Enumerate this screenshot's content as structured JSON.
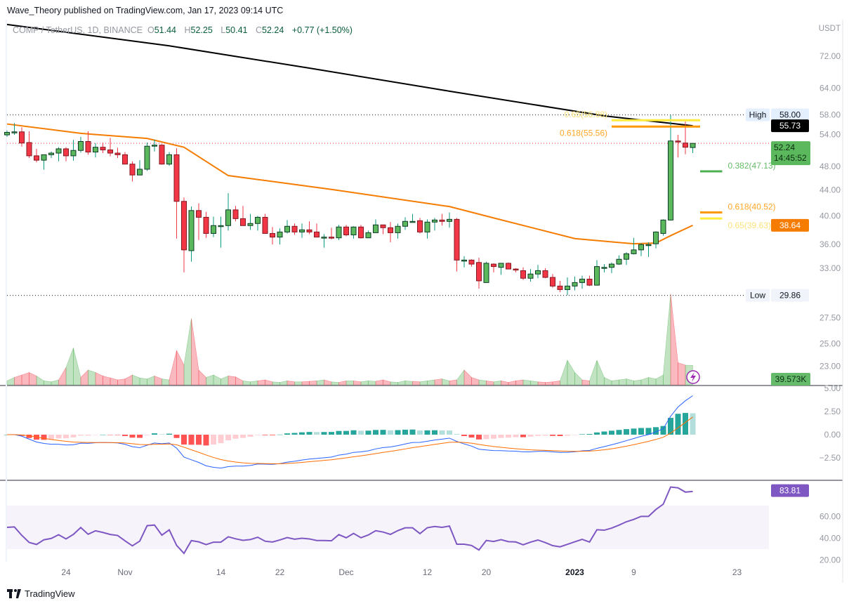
{
  "header": {
    "publisher_line": "Wave_Theory published on TradingView.com, Jan 17, 2023 09:14 UTC"
  },
  "legend": {
    "symbol": "COMP / TetherUS, 1D, BINANCE",
    "o_key": "O",
    "o": "51.44",
    "h_key": "H",
    "h": "52.25",
    "l_key": "L",
    "l": "50.41",
    "c_key": "C",
    "c": "52.24",
    "change": "+0.77 (+1.50%)"
  },
  "footer": {
    "brand": "TradingView"
  },
  "colors": {
    "up": "#5cb85c",
    "down": "#f23645",
    "up_wick": "#089981",
    "down_wick": "#f23645",
    "ma200": "#000000",
    "ema": "#f57c00",
    "rsi": "#7e57c2",
    "macd": "#2962ff",
    "signal": "#ff6d00"
  },
  "chart_data": {
    "type": "candlestick",
    "currency": "USDT",
    "price_scale": "log",
    "price_ticks": [
      "72.00",
      "64.00",
      "58.00",
      "54.00",
      "48.00",
      "44.00",
      "40.00",
      "36.00",
      "33.00",
      "27.50",
      "25.00",
      "23.00"
    ],
    "macd_ticks": [
      "5.00",
      "2.50",
      "0.00",
      "−2.50"
    ],
    "rsi_ticks": [
      "60.00",
      "40.00",
      "20.00"
    ],
    "time_labels": [
      {
        "label": "24",
        "date": "2022-10-24"
      },
      {
        "label": "Nov",
        "date": "2022-11-01"
      },
      {
        "label": "14",
        "date": "2022-11-14"
      },
      {
        "label": "22",
        "date": "2022-11-22"
      },
      {
        "label": "Dec",
        "date": "2022-12-01"
      },
      {
        "label": "12",
        "date": "2022-12-12"
      },
      {
        "label": "20",
        "date": "2022-12-20"
      },
      {
        "label": "2023",
        "date": "2023-01-01",
        "bold": true
      },
      {
        "label": "9",
        "date": "2023-01-09"
      },
      {
        "label": "23",
        "date": "2023-01-23"
      }
    ],
    "candle_fields": [
      "date",
      "open",
      "high",
      "low",
      "close",
      "volume_k"
    ],
    "candles": [
      [
        "2022-10-16",
        53.9,
        54.8,
        53.5,
        54.4,
        8
      ],
      [
        "2022-10-17",
        54.5,
        56.3,
        53.9,
        54.5,
        15
      ],
      [
        "2022-10-18",
        54.5,
        55.4,
        51.6,
        52.3,
        20
      ],
      [
        "2022-10-19",
        52.4,
        54.6,
        49.5,
        49.9,
        25
      ],
      [
        "2022-10-20",
        49.9,
        51.2,
        48.7,
        49.1,
        18
      ],
      [
        "2022-10-21",
        49.1,
        50.1,
        47.4,
        50.1,
        8
      ],
      [
        "2022-10-22",
        50.1,
        50.7,
        49.5,
        50.4,
        6
      ],
      [
        "2022-10-23",
        50.4,
        51.5,
        48.9,
        51.2,
        10
      ],
      [
        "2022-10-24",
        51.2,
        51.5,
        48.9,
        49.9,
        35
      ],
      [
        "2022-10-25",
        49.9,
        52.9,
        49.0,
        50.9,
        75
      ],
      [
        "2022-10-26",
        50.9,
        53.5,
        50.5,
        52.6,
        15
      ],
      [
        "2022-10-27",
        52.6,
        54.6,
        50.1,
        50.6,
        30
      ],
      [
        "2022-10-28",
        50.6,
        52.3,
        49.6,
        51.5,
        25
      ],
      [
        "2022-10-29",
        51.5,
        52.4,
        50.4,
        51.0,
        18
      ],
      [
        "2022-10-30",
        51.0,
        53.3,
        49.8,
        50.4,
        14
      ],
      [
        "2022-10-31",
        50.4,
        51.4,
        49.5,
        50.1,
        10
      ],
      [
        "2022-11-01",
        50.1,
        50.6,
        48.4,
        48.4,
        12
      ],
      [
        "2022-11-02",
        48.4,
        48.9,
        45.4,
        46.5,
        20
      ],
      [
        "2022-11-03",
        46.5,
        49.1,
        46.5,
        47.5,
        14
      ],
      [
        "2022-11-04",
        47.5,
        52.4,
        47.2,
        51.7,
        12
      ],
      [
        "2022-11-05",
        51.7,
        53.0,
        50.7,
        51.9,
        18
      ],
      [
        "2022-11-06",
        51.9,
        52.1,
        48.3,
        48.4,
        12
      ],
      [
        "2022-11-07",
        48.4,
        50.6,
        48.1,
        50.1,
        10
      ],
      [
        "2022-11-08",
        50.1,
        51.3,
        36.8,
        42.2,
        70
      ],
      [
        "2022-11-09",
        42.2,
        42.8,
        32.5,
        35.3,
        40
      ],
      [
        "2022-11-10",
        35.2,
        41.4,
        33.8,
        40.8,
        135
      ],
      [
        "2022-11-11",
        40.8,
        41.9,
        36.6,
        39.8,
        30
      ],
      [
        "2022-11-12",
        39.8,
        40.6,
        36.9,
        37.5,
        15
      ],
      [
        "2022-11-13",
        37.5,
        39.9,
        37.0,
        38.6,
        20
      ],
      [
        "2022-11-14",
        38.6,
        39.9,
        35.6,
        38.6,
        12
      ],
      [
        "2022-11-15",
        38.6,
        43.5,
        37.9,
        40.9,
        18
      ],
      [
        "2022-11-16",
        40.9,
        41.5,
        39.2,
        39.6,
        16
      ],
      [
        "2022-11-17",
        39.6,
        41.5,
        38.6,
        38.6,
        8
      ],
      [
        "2022-11-18",
        38.6,
        40.3,
        38.0,
        38.9,
        6
      ],
      [
        "2022-11-19",
        38.9,
        40.0,
        37.9,
        39.8,
        8
      ],
      [
        "2022-11-20",
        39.8,
        40.3,
        37.5,
        37.5,
        10
      ],
      [
        "2022-11-21",
        37.5,
        38.4,
        36.0,
        37.0,
        6
      ],
      [
        "2022-11-22",
        37.0,
        38.2,
        36.0,
        37.7,
        5
      ],
      [
        "2022-11-23",
        37.7,
        39.4,
        37.5,
        38.5,
        8
      ],
      [
        "2022-11-24",
        38.5,
        38.9,
        37.3,
        37.7,
        6
      ],
      [
        "2022-11-25",
        37.7,
        38.9,
        36.9,
        38.0,
        6
      ],
      [
        "2022-11-26",
        38.0,
        39.2,
        37.4,
        37.7,
        7
      ],
      [
        "2022-11-27",
        37.7,
        38.9,
        37.0,
        37.0,
        8
      ],
      [
        "2022-11-28",
        37.0,
        37.4,
        35.6,
        37.0,
        10
      ],
      [
        "2022-11-29",
        37.0,
        38.3,
        36.7,
        36.9,
        6
      ],
      [
        "2022-11-30",
        36.9,
        38.7,
        36.6,
        38.4,
        5
      ],
      [
        "2022-12-01",
        38.4,
        38.7,
        37.1,
        37.3,
        8
      ],
      [
        "2022-12-02",
        37.3,
        38.5,
        36.8,
        38.4,
        8
      ],
      [
        "2022-12-03",
        38.4,
        38.7,
        36.8,
        36.9,
        6
      ],
      [
        "2022-12-04",
        36.9,
        37.9,
        36.9,
        37.6,
        8
      ],
      [
        "2022-12-05",
        37.6,
        39.5,
        37.6,
        38.7,
        7
      ],
      [
        "2022-12-06",
        38.7,
        38.7,
        37.4,
        38.3,
        10
      ],
      [
        "2022-12-07",
        38.3,
        39.1,
        36.3,
        37.6,
        6
      ],
      [
        "2022-12-08",
        37.6,
        38.9,
        36.8,
        38.5,
        5
      ],
      [
        "2022-12-09",
        38.5,
        39.8,
        38.0,
        39.2,
        8
      ],
      [
        "2022-12-10",
        39.2,
        40.3,
        39.2,
        39.2,
        7
      ],
      [
        "2022-12-11",
        39.3,
        39.7,
        37.5,
        37.7,
        6
      ],
      [
        "2022-12-12",
        37.7,
        39.5,
        36.8,
        39.1,
        8
      ],
      [
        "2022-12-13",
        39.1,
        39.7,
        37.9,
        39.4,
        10
      ],
      [
        "2022-12-14",
        39.4,
        40.3,
        38.6,
        39.2,
        12
      ],
      [
        "2022-12-15",
        39.2,
        40.5,
        38.3,
        39.5,
        8
      ],
      [
        "2022-12-16",
        39.5,
        39.7,
        32.6,
        34.0,
        10
      ],
      [
        "2022-12-17",
        34.0,
        34.5,
        33.1,
        34.0,
        30
      ],
      [
        "2022-12-18",
        34.0,
        34.1,
        33.2,
        33.5,
        15
      ],
      [
        "2022-12-19",
        33.7,
        34.3,
        30.6,
        31.5,
        10
      ],
      [
        "2022-12-20",
        31.3,
        33.8,
        31.3,
        33.6,
        8
      ],
      [
        "2022-12-21",
        33.5,
        33.6,
        32.5,
        33.2,
        6
      ],
      [
        "2022-12-22",
        33.1,
        33.6,
        32.2,
        33.6,
        8
      ],
      [
        "2022-12-23",
        33.6,
        33.7,
        32.9,
        32.9,
        5
      ],
      [
        "2022-12-24",
        32.9,
        33.0,
        32.5,
        32.8,
        8
      ],
      [
        "2022-12-25",
        32.7,
        33.1,
        31.6,
        31.8,
        10
      ],
      [
        "2022-12-26",
        31.8,
        32.9,
        31.4,
        32.3,
        8
      ],
      [
        "2022-12-27",
        32.3,
        33.4,
        31.8,
        32.7,
        6
      ],
      [
        "2022-12-28",
        32.7,
        33.0,
        31.8,
        31.9,
        5
      ],
      [
        "2022-12-29",
        31.9,
        32.3,
        30.7,
        30.9,
        6
      ],
      [
        "2022-12-30",
        30.9,
        31.5,
        30.2,
        30.5,
        8
      ],
      [
        "2022-12-31",
        30.5,
        31.9,
        29.86,
        30.9,
        50
      ],
      [
        "2023-01-01",
        30.9,
        32.0,
        30.4,
        31.3,
        25
      ],
      [
        "2023-01-02",
        31.3,
        32.1,
        30.6,
        31.7,
        10
      ],
      [
        "2023-01-03",
        31.7,
        32.1,
        30.9,
        31.0,
        8
      ],
      [
        "2023-01-04",
        31.0,
        34.0,
        31.0,
        33.2,
        50
      ],
      [
        "2023-01-05",
        33.1,
        33.5,
        32.5,
        33.1,
        15
      ],
      [
        "2023-01-06",
        33.1,
        33.7,
        32.4,
        33.5,
        8
      ],
      [
        "2023-01-07",
        33.5,
        34.6,
        33.4,
        34.1,
        10
      ],
      [
        "2023-01-08",
        34.1,
        35.0,
        33.4,
        34.8,
        12
      ],
      [
        "2023-01-09",
        34.8,
        36.9,
        34.7,
        35.3,
        8
      ],
      [
        "2023-01-10",
        35.3,
        36.2,
        34.5,
        36.0,
        10
      ],
      [
        "2023-01-11",
        36.0,
        36.3,
        34.4,
        36.0,
        15
      ],
      [
        "2023-01-12",
        36.1,
        37.8,
        35.5,
        37.7,
        12
      ],
      [
        "2023-01-13",
        37.5,
        39.5,
        37.2,
        39.4,
        20
      ],
      [
        "2023-01-14",
        39.4,
        58.0,
        39.3,
        52.7,
        185
      ],
      [
        "2023-01-15",
        52.7,
        53.9,
        49.6,
        52.5,
        45
      ],
      [
        "2023-01-16",
        52.3,
        56.6,
        50.2,
        51.5,
        40
      ],
      [
        "2023-01-17",
        51.44,
        52.25,
        50.41,
        52.24,
        39.573
      ]
    ],
    "ma_200": [
      [
        "2022-10-16",
        80.9
      ],
      [
        "2022-11-07",
        74.8
      ],
      [
        "2022-11-26",
        68.9
      ],
      [
        "2022-12-15",
        63.3
      ],
      [
        "2023-01-05",
        57.8
      ],
      [
        "2023-01-17",
        55.73
      ]
    ],
    "ema": [
      [
        "2022-10-16",
        56.1
      ],
      [
        "2022-10-26",
        54.2
      ],
      [
        "2022-11-04",
        53.2
      ],
      [
        "2022-11-09",
        51.5
      ],
      [
        "2022-11-15",
        46.4
      ],
      [
        "2022-11-29",
        44.1
      ],
      [
        "2022-12-15",
        41.4
      ],
      [
        "2022-12-21",
        39.7
      ],
      [
        "2023-01-01",
        36.8
      ],
      [
        "2023-01-09",
        36.1
      ],
      [
        "2023-01-12",
        36.2
      ],
      [
        "2023-01-14",
        37.2
      ],
      [
        "2023-01-17",
        38.64
      ]
    ],
    "fib_levels": [
      {
        "label": "0.65(56.88)",
        "price": 56.88,
        "color": "#ffeb3b",
        "text_color": "#fbe27a",
        "from": "2023-01-06",
        "to": "2023-01-18"
      },
      {
        "label": "0.618(55.56)",
        "price": 55.56,
        "color": "#ff9800",
        "text_color": "#ffa726",
        "from": "2023-01-06",
        "to": "2023-01-18"
      },
      {
        "label": "0.382(47.13)",
        "price": 47.13,
        "color": "#4caf50",
        "text_color": "#66bb6a",
        "from": "2023-01-18",
        "to": "2023-01-21"
      },
      {
        "label": "0.618(40.52)",
        "price": 40.52,
        "color": "#ff9800",
        "text_color": "#ffa726",
        "from": "2023-01-18",
        "to": "2023-01-21"
      },
      {
        "label": "0.65(39.63)",
        "price": 39.63,
        "color": "#ffeb3b",
        "text_color": "#fbe27a",
        "from": "2023-01-18",
        "to": "2023-01-21"
      }
    ],
    "high": {
      "label": "High",
      "value": "58.00",
      "price": 58.0
    },
    "low": {
      "label": "Low",
      "value": "29.86",
      "price": 29.86
    },
    "badges": {
      "ma200": {
        "text": "55.73",
        "price": 55.73,
        "bg": "#000000",
        "fg": "#ffffff"
      },
      "last": {
        "text": "52.24",
        "countdown": "14:45:52",
        "price": 52.24,
        "bg": "#5cb85c",
        "fg": "#0b2e13"
      },
      "ema": {
        "text": "38.64",
        "price": 38.64,
        "bg": "#f57c00",
        "fg": "#ffffff"
      },
      "volume": {
        "text": "39.573K",
        "bg": "#66bb6a",
        "fg": "#0b2e13"
      },
      "rsi": {
        "text": "83.81",
        "value": 83.81,
        "bg": "#7e57c2",
        "fg": "#ffffff"
      }
    },
    "rsi_band": [
      30,
      70
    ],
    "icons": {
      "alert": "lightning-icon"
    }
  }
}
